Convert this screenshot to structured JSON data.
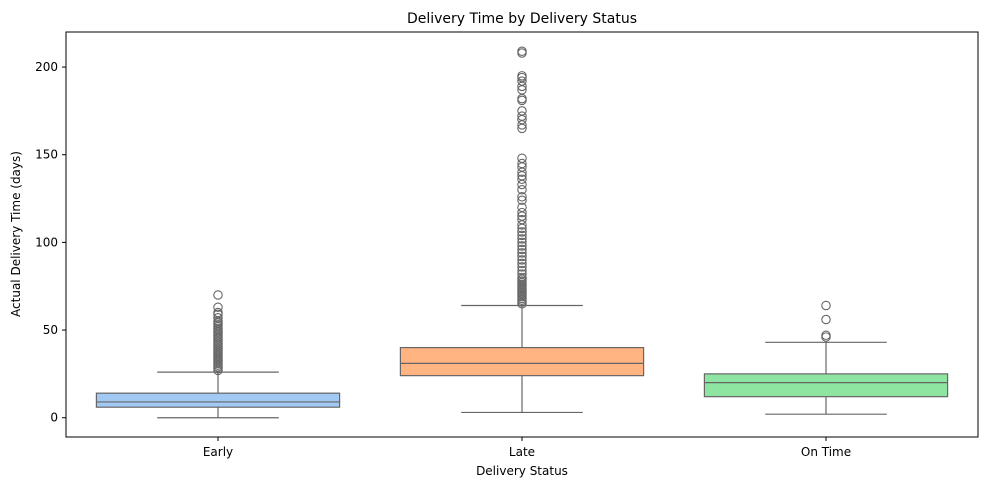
{
  "chart_data": {
    "type": "box",
    "title": "Delivery Time by Delivery Status",
    "xlabel": "Delivery Status",
    "ylabel": "Actual Delivery Time (days)",
    "ylim": [
      -11,
      220
    ],
    "yticks": [
      0,
      50,
      100,
      150,
      200
    ],
    "categories": [
      "Early",
      "Late",
      "On Time"
    ],
    "grid": false,
    "boxes": [
      {
        "category": "Early",
        "color": "#a1c9f4",
        "whisker_low": 0,
        "q1": 6,
        "median": 9,
        "q3": 14,
        "whisker_high": 26,
        "outliers": [
          27,
          28,
          29,
          30,
          31,
          32,
          33,
          34,
          35,
          36,
          37,
          38,
          39,
          40,
          41,
          42,
          43,
          44,
          45,
          46,
          47,
          48,
          49,
          50,
          51,
          52,
          53,
          54,
          55,
          57,
          59,
          60,
          63,
          70
        ]
      },
      {
        "category": "Late",
        "color": "#ffb482",
        "whisker_low": 3,
        "q1": 24,
        "median": 31,
        "q3": 40,
        "whisker_high": 64,
        "outliers": [
          65,
          66,
          67,
          68,
          69,
          70,
          71,
          72,
          73,
          74,
          75,
          76,
          77,
          78,
          79,
          80,
          82,
          84,
          86,
          88,
          90,
          92,
          94,
          96,
          98,
          100,
          102,
          104,
          106,
          108,
          110,
          113,
          115,
          117,
          120,
          124,
          126,
          130,
          133,
          136,
          138,
          140,
          143,
          145,
          148,
          165,
          167,
          170,
          172,
          175,
          181,
          182,
          187,
          189,
          192,
          194,
          195,
          208,
          209
        ]
      },
      {
        "category": "On Time",
        "color": "#8de5a1",
        "whisker_low": 2,
        "q1": 12,
        "median": 20,
        "q3": 25,
        "whisker_high": 43,
        "outliers": [
          46,
          47,
          56,
          64
        ]
      }
    ]
  }
}
